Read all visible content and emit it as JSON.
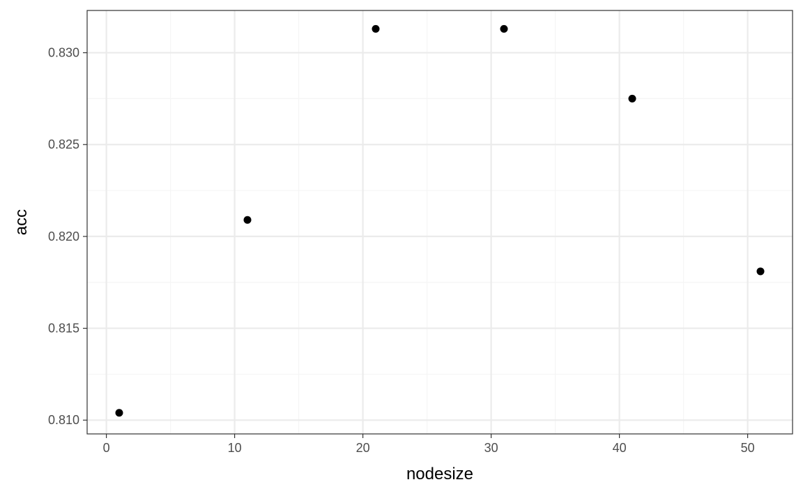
{
  "chart_data": {
    "type": "scatter",
    "title": "",
    "xlabel": "nodesize",
    "ylabel": "acc",
    "xlim": [
      -1.5,
      53.5
    ],
    "ylim": [
      0.80925,
      0.8323
    ],
    "x_ticks": [
      0,
      10,
      20,
      30,
      40,
      50
    ],
    "x_tick_labels": [
      "0",
      "10",
      "20",
      "30",
      "40",
      "50"
    ],
    "x_minor_ticks": [
      5,
      15,
      25,
      35,
      45
    ],
    "y_ticks": [
      0.81,
      0.815,
      0.82,
      0.825,
      0.83
    ],
    "y_tick_labels": [
      "0.810",
      "0.815",
      "0.820",
      "0.825",
      "0.830"
    ],
    "y_minor_ticks": [
      0.8125,
      0.8175,
      0.8225,
      0.8275
    ],
    "grid": true,
    "legend": "none",
    "colors": {
      "point": "#000000",
      "panel_border": "#333333",
      "grid_major": "#ebebeb",
      "grid_minor": "#f5f5f5"
    },
    "series": [
      {
        "x": [
          1,
          11,
          21,
          31,
          41,
          51
        ],
        "y": [
          0.8104,
          0.8209,
          0.8313,
          0.8313,
          0.8275,
          0.8181
        ]
      }
    ]
  }
}
